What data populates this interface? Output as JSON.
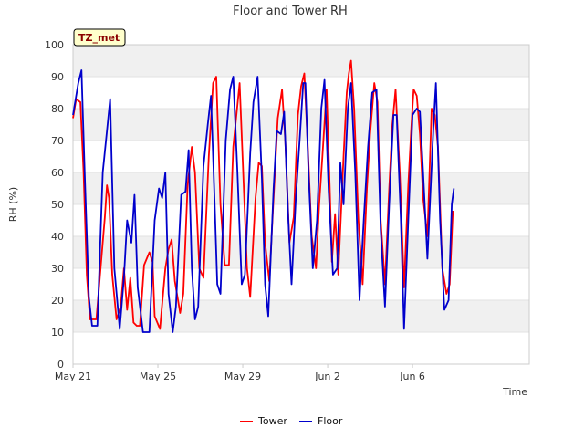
{
  "chart_data": {
    "type": "line",
    "title": "Floor and Tower RH",
    "xlabel": "Time",
    "ylabel": "RH (%)",
    "ylim": [
      0,
      100
    ],
    "xlim": [
      0,
      21.5
    ],
    "y_ticks": [
      0,
      10,
      20,
      30,
      40,
      50,
      60,
      70,
      80,
      90,
      100
    ],
    "x_ticks": [
      {
        "day": 0,
        "label": "May 21"
      },
      {
        "day": 4,
        "label": "May 25"
      },
      {
        "day": 8,
        "label": "May 29"
      },
      {
        "day": 12,
        "label": "Jun 2"
      },
      {
        "day": 16,
        "label": "Jun 6"
      }
    ],
    "annotation": "TZ_met",
    "grid": true,
    "legend_position": "bottom-center",
    "colors": {
      "Tower": "#ff0000",
      "Floor": "#0000cc",
      "band": "#f0f0f0"
    },
    "series": [
      {
        "name": "Tower",
        "points": [
          [
            0.0,
            77
          ],
          [
            0.15,
            83
          ],
          [
            0.35,
            82
          ],
          [
            0.5,
            60
          ],
          [
            0.65,
            28
          ],
          [
            0.8,
            14
          ],
          [
            1.1,
            14
          ],
          [
            1.5,
            46
          ],
          [
            1.6,
            56
          ],
          [
            1.7,
            52
          ],
          [
            1.85,
            28
          ],
          [
            2.05,
            14
          ],
          [
            2.25,
            18
          ],
          [
            2.4,
            30
          ],
          [
            2.55,
            17
          ],
          [
            2.7,
            27
          ],
          [
            2.85,
            13
          ],
          [
            3.0,
            12
          ],
          [
            3.15,
            12
          ],
          [
            3.35,
            31
          ],
          [
            3.6,
            35
          ],
          [
            3.75,
            32
          ],
          [
            3.85,
            15
          ],
          [
            4.1,
            11
          ],
          [
            4.35,
            30
          ],
          [
            4.5,
            36
          ],
          [
            4.65,
            39
          ],
          [
            4.8,
            26
          ],
          [
            5.05,
            16
          ],
          [
            5.2,
            22
          ],
          [
            5.4,
            56
          ],
          [
            5.6,
            68
          ],
          [
            5.75,
            60
          ],
          [
            5.95,
            30
          ],
          [
            6.15,
            27
          ],
          [
            6.4,
            65
          ],
          [
            6.6,
            88
          ],
          [
            6.75,
            90
          ],
          [
            6.95,
            50
          ],
          [
            7.15,
            31
          ],
          [
            7.35,
            31
          ],
          [
            7.55,
            68
          ],
          [
            7.7,
            78
          ],
          [
            7.85,
            88
          ],
          [
            8.05,
            55
          ],
          [
            8.2,
            30
          ],
          [
            8.35,
            21
          ],
          [
            8.6,
            52
          ],
          [
            8.75,
            63
          ],
          [
            8.9,
            62
          ],
          [
            9.05,
            38
          ],
          [
            9.25,
            26
          ],
          [
            9.45,
            52
          ],
          [
            9.65,
            77
          ],
          [
            9.85,
            86
          ],
          [
            10.0,
            70
          ],
          [
            10.2,
            38
          ],
          [
            10.4,
            46
          ],
          [
            10.6,
            78
          ],
          [
            10.75,
            87
          ],
          [
            10.9,
            91
          ],
          [
            11.05,
            70
          ],
          [
            11.25,
            40
          ],
          [
            11.45,
            30
          ],
          [
            11.6,
            50
          ],
          [
            11.75,
            65
          ],
          [
            11.95,
            86
          ],
          [
            12.1,
            55
          ],
          [
            12.2,
            32
          ],
          [
            12.35,
            47
          ],
          [
            12.5,
            28
          ],
          [
            12.75,
            65
          ],
          [
            12.9,
            85
          ],
          [
            13.0,
            91
          ],
          [
            13.1,
            95
          ],
          [
            13.25,
            80
          ],
          [
            13.45,
            45
          ],
          [
            13.65,
            25
          ],
          [
            13.85,
            55
          ],
          [
            14.0,
            72
          ],
          [
            14.2,
            88
          ],
          [
            14.35,
            82
          ],
          [
            14.5,
            45
          ],
          [
            14.7,
            25
          ],
          [
            14.9,
            55
          ],
          [
            15.05,
            75
          ],
          [
            15.2,
            86
          ],
          [
            15.4,
            60
          ],
          [
            15.6,
            24
          ],
          [
            15.8,
            56
          ],
          [
            15.95,
            75
          ],
          [
            16.05,
            86
          ],
          [
            16.2,
            84
          ],
          [
            16.35,
            72
          ],
          [
            16.5,
            52
          ],
          [
            16.7,
            40
          ],
          [
            16.9,
            80
          ],
          [
            17.05,
            78
          ],
          [
            17.2,
            68
          ],
          [
            17.4,
            30
          ],
          [
            17.6,
            22
          ],
          [
            17.75,
            25
          ],
          [
            17.9,
            48
          ]
        ]
      },
      {
        "name": "Floor",
        "points": [
          [
            0.0,
            78
          ],
          [
            0.25,
            88
          ],
          [
            0.4,
            92
          ],
          [
            0.55,
            60
          ],
          [
            0.75,
            21
          ],
          [
            0.9,
            12
          ],
          [
            1.15,
            12
          ],
          [
            1.4,
            60
          ],
          [
            1.6,
            73
          ],
          [
            1.75,
            83
          ],
          [
            1.95,
            30
          ],
          [
            2.2,
            11
          ],
          [
            2.4,
            27
          ],
          [
            2.55,
            45
          ],
          [
            2.75,
            38
          ],
          [
            2.9,
            53
          ],
          [
            3.05,
            24
          ],
          [
            3.3,
            10
          ],
          [
            3.6,
            10
          ],
          [
            3.85,
            45
          ],
          [
            4.05,
            55
          ],
          [
            4.2,
            52
          ],
          [
            4.35,
            60
          ],
          [
            4.5,
            22
          ],
          [
            4.7,
            10
          ],
          [
            4.85,
            18
          ],
          [
            5.1,
            53
          ],
          [
            5.3,
            54
          ],
          [
            5.45,
            67
          ],
          [
            5.6,
            30
          ],
          [
            5.75,
            14
          ],
          [
            5.9,
            18
          ],
          [
            6.15,
            62
          ],
          [
            6.35,
            75
          ],
          [
            6.5,
            84
          ],
          [
            6.65,
            55
          ],
          [
            6.8,
            25
          ],
          [
            6.95,
            22
          ],
          [
            7.2,
            70
          ],
          [
            7.4,
            86
          ],
          [
            7.55,
            90
          ],
          [
            7.75,
            60
          ],
          [
            7.95,
            25
          ],
          [
            8.1,
            28
          ],
          [
            8.35,
            66
          ],
          [
            8.5,
            82
          ],
          [
            8.7,
            90
          ],
          [
            8.9,
            58
          ],
          [
            9.05,
            25
          ],
          [
            9.2,
            15
          ],
          [
            9.45,
            55
          ],
          [
            9.6,
            73
          ],
          [
            9.8,
            72
          ],
          [
            9.95,
            79
          ],
          [
            10.15,
            45
          ],
          [
            10.3,
            25
          ],
          [
            10.5,
            52
          ],
          [
            10.7,
            72
          ],
          [
            10.85,
            88
          ],
          [
            10.95,
            88
          ],
          [
            11.1,
            60
          ],
          [
            11.3,
            30
          ],
          [
            11.5,
            45
          ],
          [
            11.7,
            80
          ],
          [
            11.85,
            89
          ],
          [
            12.05,
            54
          ],
          [
            12.25,
            28
          ],
          [
            12.45,
            30
          ],
          [
            12.6,
            63
          ],
          [
            12.75,
            50
          ],
          [
            12.95,
            80
          ],
          [
            13.1,
            88
          ],
          [
            13.3,
            60
          ],
          [
            13.5,
            20
          ],
          [
            13.7,
            45
          ],
          [
            13.9,
            68
          ],
          [
            14.1,
            85
          ],
          [
            14.3,
            86
          ],
          [
            14.5,
            42
          ],
          [
            14.7,
            18
          ],
          [
            14.9,
            50
          ],
          [
            15.1,
            78
          ],
          [
            15.25,
            78
          ],
          [
            15.45,
            45
          ],
          [
            15.6,
            11
          ],
          [
            15.8,
            45
          ],
          [
            16.0,
            78
          ],
          [
            16.2,
            80
          ],
          [
            16.35,
            79
          ],
          [
            16.5,
            60
          ],
          [
            16.7,
            33
          ],
          [
            16.85,
            55
          ],
          [
            17.0,
            76
          ],
          [
            17.1,
            88
          ],
          [
            17.3,
            45
          ],
          [
            17.5,
            17
          ],
          [
            17.7,
            20
          ],
          [
            17.85,
            50
          ],
          [
            17.95,
            55
          ]
        ]
      }
    ]
  }
}
